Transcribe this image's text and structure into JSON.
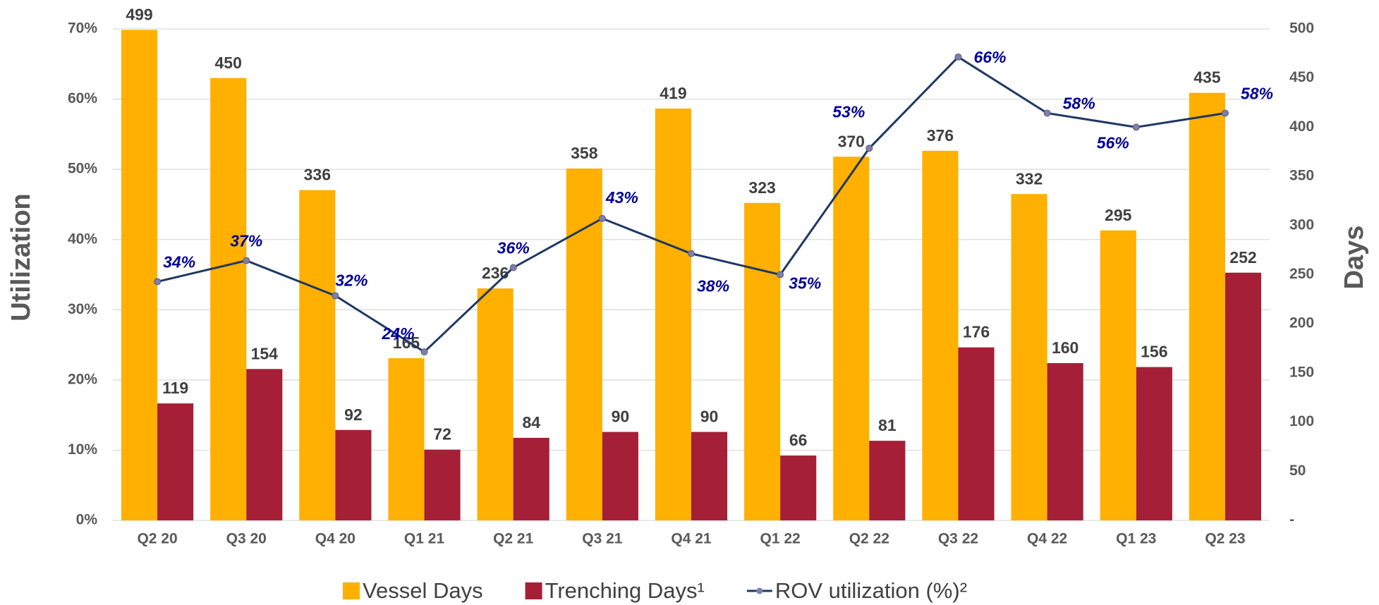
{
  "chart_data": {
    "type": "bar_line",
    "y_label": "Utilization",
    "y2_label": "Days",
    "categories": [
      "Q2 20",
      "Q3 20",
      "Q4 20",
      "Q1 21",
      "Q2 21",
      "Q3 21",
      "Q4 21",
      "Q1 22",
      "Q2 22",
      "Q3 22",
      "Q4 22",
      "Q1 23",
      "Q2 23"
    ],
    "series": [
      {
        "name": "Vessel Days",
        "color": "#ffb000",
        "axis": "y2",
        "type": "bar",
        "values": [
          499,
          450,
          336,
          165,
          236,
          358,
          419,
          323,
          370,
          376,
          332,
          295,
          435
        ]
      },
      {
        "name": "Trenching Days¹",
        "color": "#a51f37",
        "axis": "y2",
        "type": "bar",
        "values": [
          119,
          154,
          92,
          72,
          84,
          90,
          90,
          66,
          81,
          176,
          160,
          156,
          252
        ]
      },
      {
        "name": "ROV utilization (%)²",
        "color": "#1f3864",
        "axis": "y",
        "type": "line",
        "values": [
          34,
          37,
          32,
          24,
          36,
          43,
          38,
          35,
          53,
          66,
          58,
          56,
          58
        ],
        "value_labels": [
          "34%",
          "37%",
          "32%",
          "24%",
          "36%",
          "43%",
          "38%",
          "35%",
          "53%",
          "66%",
          "58%",
          "56%",
          "58%"
        ]
      }
    ],
    "ylim": [
      0,
      70
    ],
    "yticks": [
      {
        "value": 0,
        "label": "0%"
      },
      {
        "value": 10,
        "label": "10%"
      },
      {
        "value": 20,
        "label": "20%"
      },
      {
        "value": 30,
        "label": "30%"
      },
      {
        "value": 40,
        "label": "40%"
      },
      {
        "value": 50,
        "label": "50%"
      },
      {
        "value": 60,
        "label": "60%"
      },
      {
        "value": 70,
        "label": "70%"
      }
    ],
    "y2lim": [
      0,
      500
    ],
    "y2ticks": [
      {
        "value": 0,
        "label": "-"
      },
      50,
      100,
      150,
      200,
      250,
      300,
      350,
      400,
      450,
      500
    ],
    "grid": true,
    "legend": "bottom"
  }
}
